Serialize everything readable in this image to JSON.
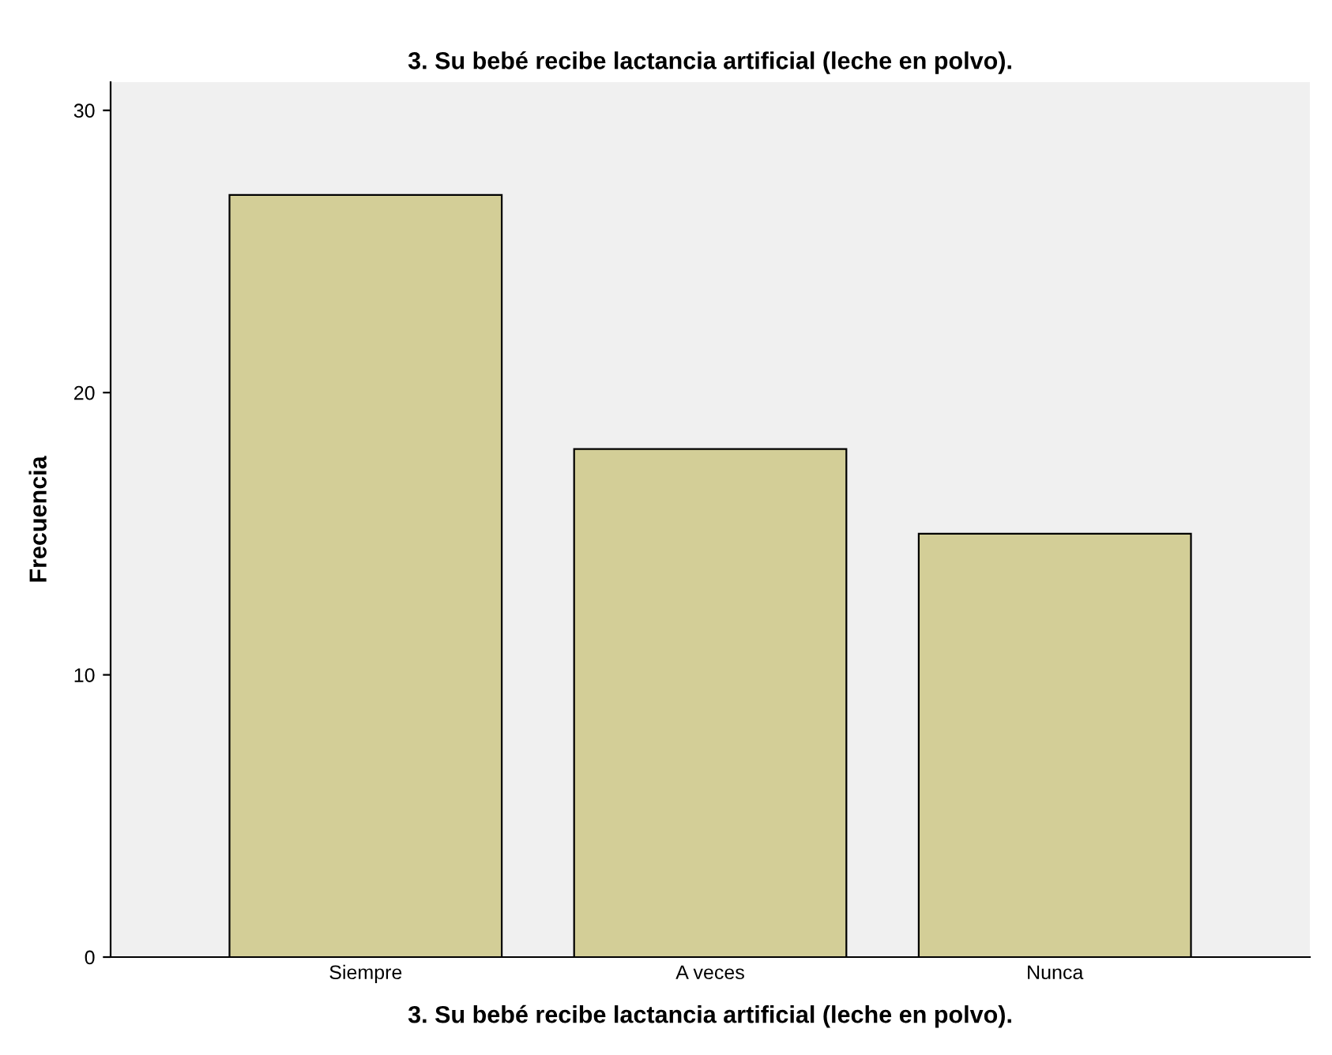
{
  "chart_data": {
    "type": "bar",
    "title": "3. Su bebé recibe lactancia artificial (leche en polvo).",
    "xlabel": "3. Su bebé recibe lactancia artificial (leche en polvo).",
    "ylabel": "Frecuencia",
    "categories": [
      "Siempre",
      "A veces",
      "Nunca"
    ],
    "values": [
      27,
      18,
      15
    ],
    "color": "#d3ce97",
    "ylim": [
      0,
      31
    ],
    "yticks": [
      0,
      10,
      20,
      30
    ],
    "grid": false,
    "legend": false
  }
}
